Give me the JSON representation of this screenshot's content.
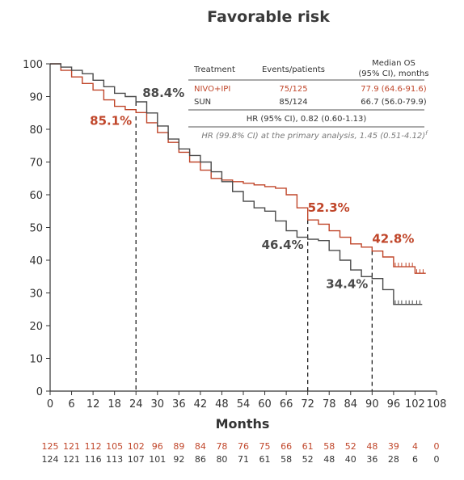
{
  "chart_data": {
    "type": "line",
    "title": "Favorable risk",
    "xlabel": "Months",
    "ylabel": "",
    "xlim": [
      0,
      108
    ],
    "ylim": [
      0,
      100
    ],
    "x_ticks": [
      "0",
      "6",
      "12",
      "18",
      "24",
      "30",
      "36",
      "42",
      "48",
      "54",
      "60",
      "66",
      "72",
      "78",
      "84",
      "90",
      "96",
      "102",
      "108"
    ],
    "y_ticks": [
      "0",
      "10",
      "20",
      "30",
      "40",
      "50",
      "60",
      "70",
      "80",
      "90",
      "100"
    ],
    "colors": {
      "nivo": "#c0462a",
      "sun": "#4a4a4a"
    },
    "series": [
      {
        "name": "NIVO+IPI",
        "color": "#c0462a",
        "points": [
          [
            0,
            100
          ],
          [
            3,
            98
          ],
          [
            6,
            96
          ],
          [
            9,
            94
          ],
          [
            12,
            92
          ],
          [
            15,
            89
          ],
          [
            18,
            87
          ],
          [
            21,
            86
          ],
          [
            24,
            85.1
          ],
          [
            27,
            82
          ],
          [
            30,
            79
          ],
          [
            33,
            76
          ],
          [
            36,
            73
          ],
          [
            39,
            70
          ],
          [
            42,
            67.5
          ],
          [
            45,
            65
          ],
          [
            48,
            64.5
          ],
          [
            51,
            64
          ],
          [
            54,
            63.5
          ],
          [
            57,
            63
          ],
          [
            60,
            62.5
          ],
          [
            63,
            62
          ],
          [
            66,
            60
          ],
          [
            69,
            56
          ],
          [
            72,
            52.3
          ],
          [
            75,
            51
          ],
          [
            78,
            49
          ],
          [
            81,
            47
          ],
          [
            84,
            45
          ],
          [
            87,
            44
          ],
          [
            90,
            42.8
          ],
          [
            93,
            41
          ],
          [
            96,
            38
          ],
          [
            99,
            38
          ],
          [
            102,
            36
          ],
          [
            105,
            36
          ]
        ]
      },
      {
        "name": "SUN",
        "color": "#4a4a4a",
        "points": [
          [
            0,
            100
          ],
          [
            3,
            99
          ],
          [
            6,
            98
          ],
          [
            9,
            97
          ],
          [
            12,
            95
          ],
          [
            15,
            93
          ],
          [
            18,
            91
          ],
          [
            21,
            90
          ],
          [
            24,
            88.4
          ],
          [
            27,
            85
          ],
          [
            30,
            81
          ],
          [
            33,
            77
          ],
          [
            36,
            74
          ],
          [
            39,
            72
          ],
          [
            42,
            70
          ],
          [
            45,
            67
          ],
          [
            48,
            64
          ],
          [
            51,
            61
          ],
          [
            54,
            58
          ],
          [
            57,
            56
          ],
          [
            60,
            55
          ],
          [
            63,
            52
          ],
          [
            66,
            49
          ],
          [
            69,
            47
          ],
          [
            72,
            46.4
          ],
          [
            75,
            46
          ],
          [
            78,
            43
          ],
          [
            81,
            40
          ],
          [
            84,
            37
          ],
          [
            87,
            35
          ],
          [
            90,
            34.4
          ],
          [
            93,
            31
          ],
          [
            96,
            26.5
          ],
          [
            99,
            26.5
          ],
          [
            102,
            26.5
          ],
          [
            104,
            26.5
          ]
        ]
      }
    ],
    "annotations": [
      {
        "x": 24,
        "y": 88.4,
        "label": "88.4%",
        "series": "SUN"
      },
      {
        "x": 24,
        "y": 85.1,
        "label": "85.1%",
        "series": "NIVO+IPI"
      },
      {
        "x": 72,
        "y": 52.3,
        "label": "52.3%",
        "series": "NIVO+IPI"
      },
      {
        "x": 72,
        "y": 46.4,
        "label": "46.4%",
        "series": "SUN"
      },
      {
        "x": 90,
        "y": 42.8,
        "label": "42.8%",
        "series": "NIVO+IPI"
      },
      {
        "x": 90,
        "y": 34.4,
        "label": "34.4%",
        "series": "SUN"
      }
    ],
    "vlines": [
      24,
      72,
      90
    ],
    "summary_table": {
      "headers": [
        "Treatment",
        "Events/patients",
        "Median OS",
        "(95% CI),  months"
      ],
      "rows": [
        {
          "treatment": "NIVO+IPI",
          "events": "75/125",
          "median": "77.9 (64.6-91.6)"
        },
        {
          "treatment": "SUN",
          "events": "85/124",
          "median": "66.7 (56.0-79.9)"
        }
      ],
      "hr": "HR (95% CI), 0.82 (0.60-1.13)",
      "hr_primary": "HR (99.8% CI) at the primary analysis, 1.45 (0.51-4.12)",
      "footnote_mark": "f"
    },
    "number_at_risk": {
      "nivo": [
        "125",
        "121",
        "112",
        "105",
        "102",
        "96",
        "89",
        "84",
        "78",
        "76",
        "75",
        "66",
        "61",
        "58",
        "52",
        "48",
        "39",
        "4",
        "0"
      ],
      "sun": [
        "124",
        "121",
        "116",
        "113",
        "107",
        "101",
        "92",
        "86",
        "80",
        "71",
        "61",
        "58",
        "52",
        "48",
        "40",
        "36",
        "28",
        "6",
        "0"
      ]
    }
  }
}
